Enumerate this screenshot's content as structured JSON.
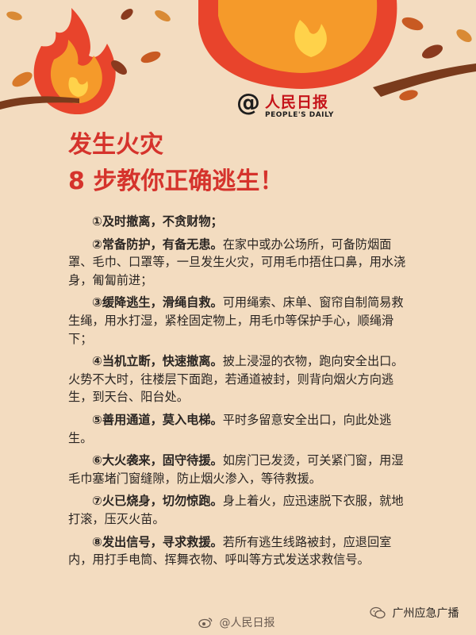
{
  "brand": {
    "at_sign": "@",
    "name_cn": "人民日报",
    "name_en": "PEOPLE'S DAILY"
  },
  "title": {
    "line1": "发生火灾",
    "line2": "8 步教你正确逃生！"
  },
  "steps": [
    {
      "head": "①及时撤离，不贪财物；",
      "body": ""
    },
    {
      "head": "②常备防护，有备无患。",
      "body": "在家中或办公场所，可备防烟面罩、毛巾、口罩等，一旦发生火灾，可用毛巾捂住口鼻，用水浇身，匍匐前进；"
    },
    {
      "head": "③缓降逃生，滑绳自救。",
      "body": "可用绳索、床单、窗帘自制简易救生绳，用水打湿，紧栓固定物上，用毛巾等保护手心，顺绳滑下；"
    },
    {
      "head": "④当机立断，快速撤离。",
      "body": "披上浸湿的衣物，跑向安全出口。火势不大时，往楼层下面跑，若通道被封，则背向烟火方向逃生，到天台、阳台处。"
    },
    {
      "head": "⑤善用通道，莫入电梯。",
      "body": "平时多留意安全出口，向此处逃生。"
    },
    {
      "head": "⑥大火袭来，固守待援。",
      "body": "如房门已发烫，可关紧门窗，用湿毛巾塞堵门窗缝隙，防止烟火渗入，等待救援。"
    },
    {
      "head": "⑦火已烧身，切勿惊跑。",
      "body": "身上着火，应迅速脱下衣服，就地打滚，压灭火苗。"
    },
    {
      "head": "⑧发出信号，寻求救援。",
      "body": "若所有逃生线路被封，应退回室内，用打手电筒、挥舞衣物、呼叫等方式发送求救信号。"
    }
  ],
  "footer": {
    "weibo": "@人民日报",
    "wechat": "广州应急广播"
  },
  "colors": {
    "background": "#f3dcc0",
    "title": "#d5332c",
    "flame_red": "#e8442c",
    "flame_orange": "#f59a2a",
    "flame_yellow": "#ffd24a"
  }
}
